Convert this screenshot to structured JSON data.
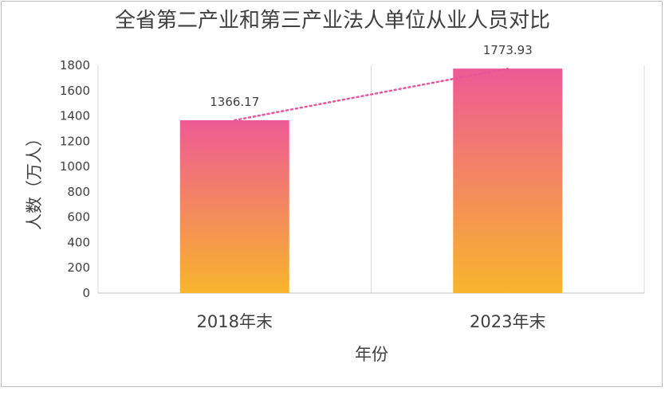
{
  "chart_data": {
    "type": "bar",
    "title": "全省第二产业和第三产业法人单位从业人员对比",
    "xlabel": "年份",
    "ylabel": "人数（万人）",
    "categories": [
      "2018年末",
      "2023年末"
    ],
    "values": [
      1366.17,
      1773.93
    ],
    "data_labels": [
      "1366.17",
      "1773.93"
    ],
    "ylim": [
      0,
      1800
    ],
    "yticks": [
      0,
      200,
      400,
      600,
      800,
      1000,
      1200,
      1400,
      1600,
      1800
    ],
    "ytick_labels": [
      "0",
      "200",
      "400",
      "600",
      "800",
      "1000",
      "1200",
      "1400",
      "1600",
      "1800"
    ],
    "grid": "vertical",
    "trendline": "dotted",
    "colors": {
      "bar_top": "#EE5A95",
      "bar_bottom": "#F8B52C",
      "trendline": "#E8559A",
      "gridline": "#d9d9d9",
      "text": "#404040"
    }
  }
}
